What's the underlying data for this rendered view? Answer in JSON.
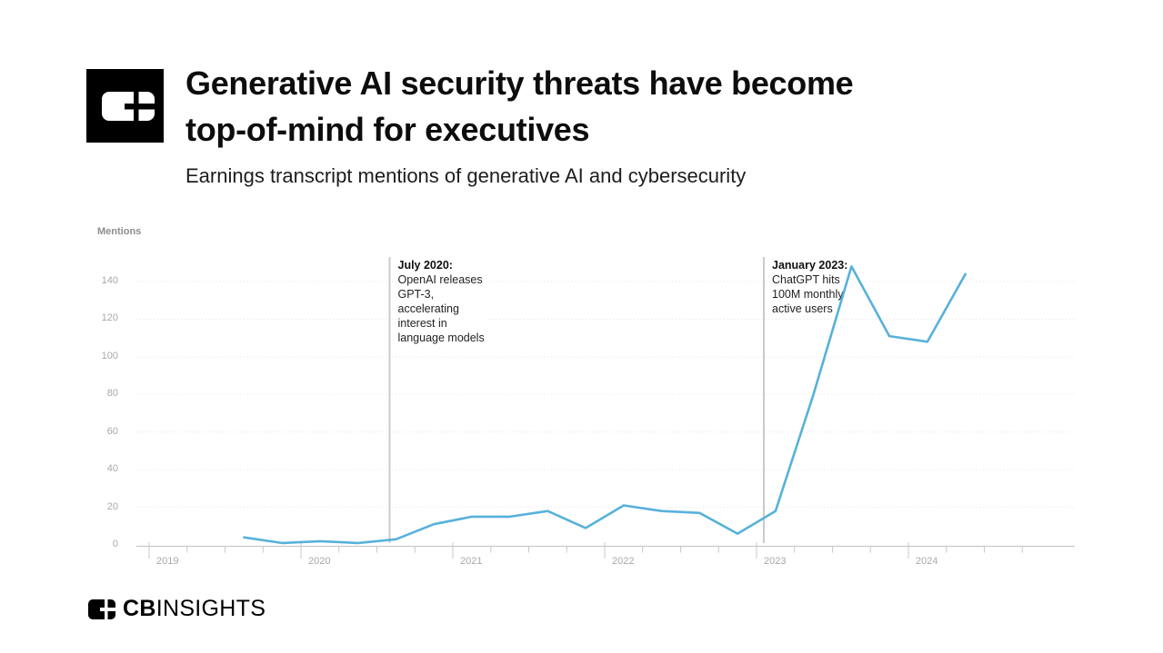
{
  "header": {
    "title_lines": [
      "Generative AI security threats have become",
      "top-of-mind for executives"
    ],
    "subtitle": "Earnings transcript mentions of generative AI and cybersecurity"
  },
  "chart_data": {
    "type": "line",
    "title": "Earnings transcript mentions of generative AI and cybersecurity",
    "ylabel": "Mentions",
    "xlabel": "",
    "ylim": [
      0,
      150
    ],
    "y_ticks": [
      0,
      20,
      40,
      60,
      80,
      100,
      120,
      140
    ],
    "x_tick_labels": [
      "2019",
      "2020",
      "2021",
      "2022",
      "2023",
      "2024"
    ],
    "grid": "horizontal-dotted",
    "legend": "none",
    "line_color": "#57b1db",
    "categories": [
      "Q3 2019",
      "Q4 2019",
      "Q1 2020",
      "Q2 2020",
      "Q3 2020",
      "Q4 2020",
      "Q1 2021",
      "Q2 2021",
      "Q3 2021",
      "Q4 2021",
      "Q1 2022",
      "Q2 2022",
      "Q3 2022",
      "Q4 2022",
      "Q1 2023",
      "Q2 2023",
      "Q3 2023",
      "Q4 2023",
      "Q1 2024",
      "Q2 2024"
    ],
    "series": [
      {
        "name": "Mentions",
        "values": [
          4,
          1,
          2,
          1,
          3,
          11,
          15,
          15,
          18,
          9,
          21,
          18,
          17,
          6,
          18,
          80,
          148,
          111,
          108,
          144
        ]
      }
    ],
    "annotations": [
      {
        "heading": "July 2020:",
        "lines": [
          "OpenAI releases",
          "GPT-3,",
          "accelerating",
          "interest in",
          "language models"
        ]
      },
      {
        "heading": "January 2023:",
        "lines": [
          "ChatGPT hits",
          "100M monthly",
          "active users"
        ]
      }
    ]
  },
  "footer": {
    "brand_bold": "CB",
    "brand_light": "INSIGHTS"
  }
}
